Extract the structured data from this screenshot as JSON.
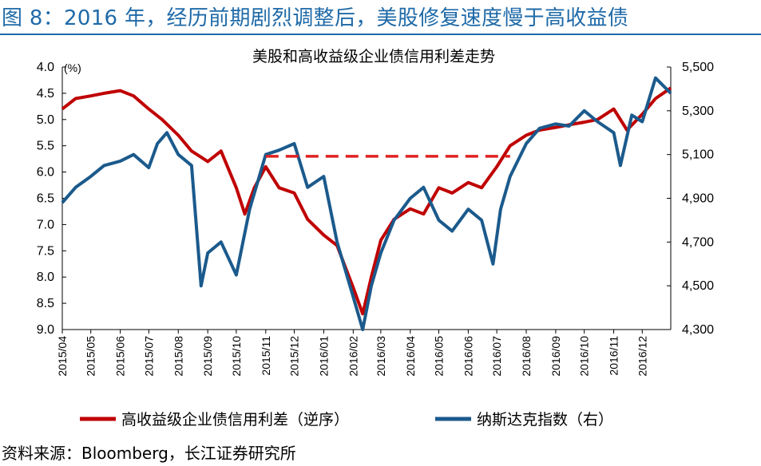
{
  "figure_title": "图 8：2016 年，经历前期剧烈调整后，美股修复速度慢于高收益债",
  "source_note": "资料来源：Bloomberg，长江证券研究所",
  "chart_data": {
    "type": "line",
    "title": "美股和高收益级企业债信用利差走势",
    "left_axis": {
      "unit": "(%)",
      "range": [
        9.0,
        4.0
      ],
      "inverted": true,
      "ticks": [
        "4.0",
        "4.5",
        "5.0",
        "5.5",
        "6.0",
        "6.5",
        "7.0",
        "7.5",
        "8.0",
        "8.5",
        "9.0"
      ]
    },
    "right_axis": {
      "range": [
        4300,
        5500
      ],
      "ticks": [
        "4,300",
        "4,500",
        "4,700",
        "4,900",
        "5,100",
        "5,300",
        "5,500"
      ]
    },
    "x_ticks": [
      "2015/04",
      "2015/05",
      "2015/06",
      "2015/07",
      "2015/08",
      "2015/09",
      "2015/10",
      "2015/11",
      "2015/12",
      "2016/01",
      "2016/02",
      "2016/03",
      "2016/04",
      "2016/05",
      "2016/06",
      "2016/07",
      "2016/08",
      "2016/09",
      "2016/10",
      "2016/11",
      "2016/12"
    ],
    "grid": false,
    "legend_position": "bottom",
    "colors": {
      "spread": "#c00000",
      "nasdaq": "#1b5a8c",
      "reference": "#e02020"
    },
    "series": [
      {
        "name": "高收益级企业债信用利差（逆序）",
        "axis": "left",
        "x": [
          "2015-04-01",
          "2015-04-15",
          "2015-05-01",
          "2015-05-15",
          "2015-06-01",
          "2015-06-15",
          "2015-07-01",
          "2015-07-15",
          "2015-08-01",
          "2015-08-15",
          "2015-09-01",
          "2015-09-15",
          "2015-10-01",
          "2015-10-10",
          "2015-10-20",
          "2015-11-01",
          "2015-11-15",
          "2015-12-01",
          "2015-12-15",
          "2016-01-01",
          "2016-01-15",
          "2016-02-01",
          "2016-02-11",
          "2016-02-20",
          "2016-03-01",
          "2016-03-15",
          "2016-04-01",
          "2016-04-15",
          "2016-05-01",
          "2016-05-15",
          "2016-06-01",
          "2016-06-15",
          "2016-07-01",
          "2016-07-15",
          "2016-08-01",
          "2016-08-15",
          "2016-09-01",
          "2016-09-15",
          "2016-10-01",
          "2016-10-15",
          "2016-11-01",
          "2016-11-15",
          "2016-12-01",
          "2016-12-15",
          "2016-12-31"
        ],
        "values": [
          4.8,
          4.6,
          4.55,
          4.5,
          4.45,
          4.55,
          4.8,
          5.0,
          5.3,
          5.6,
          5.8,
          5.6,
          6.3,
          6.8,
          6.3,
          5.9,
          6.3,
          6.4,
          6.9,
          7.2,
          7.4,
          8.2,
          8.7,
          8.0,
          7.3,
          6.9,
          6.7,
          6.8,
          6.3,
          6.4,
          6.2,
          6.3,
          5.9,
          5.5,
          5.3,
          5.2,
          5.15,
          5.1,
          5.05,
          5.0,
          4.8,
          5.2,
          4.9,
          4.6,
          4.4
        ]
      },
      {
        "name": "纳斯达克指数（右）",
        "axis": "right",
        "x": [
          "2015-04-01",
          "2015-04-15",
          "2015-05-01",
          "2015-05-15",
          "2015-06-01",
          "2015-06-15",
          "2015-07-01",
          "2015-07-10",
          "2015-07-20",
          "2015-08-01",
          "2015-08-15",
          "2015-08-25",
          "2015-09-01",
          "2015-09-15",
          "2015-10-01",
          "2015-10-15",
          "2015-11-01",
          "2015-11-15",
          "2015-12-01",
          "2015-12-15",
          "2016-01-01",
          "2016-01-15",
          "2016-02-01",
          "2016-02-11",
          "2016-02-20",
          "2016-03-01",
          "2016-03-15",
          "2016-04-01",
          "2016-04-15",
          "2016-05-01",
          "2016-05-15",
          "2016-06-01",
          "2016-06-15",
          "2016-06-27",
          "2016-07-05",
          "2016-07-15",
          "2016-08-01",
          "2016-08-15",
          "2016-09-01",
          "2016-09-15",
          "2016-10-01",
          "2016-10-15",
          "2016-11-01",
          "2016-11-08",
          "2016-11-20",
          "2016-12-01",
          "2016-12-15",
          "2016-12-31"
        ],
        "values": [
          4880,
          4950,
          5000,
          5050,
          5070,
          5100,
          5040,
          5150,
          5200,
          5100,
          5050,
          4500,
          4650,
          4700,
          4550,
          4850,
          5100,
          5120,
          5150,
          4950,
          5000,
          4700,
          4450,
          4300,
          4500,
          4650,
          4800,
          4900,
          4950,
          4800,
          4750,
          4850,
          4800,
          4600,
          4850,
          5000,
          5150,
          5220,
          5240,
          5230,
          5300,
          5250,
          5200,
          5050,
          5280,
          5250,
          5450,
          5380
        ]
      },
      {
        "name": "",
        "axis": "left",
        "style": "dashed",
        "x": [
          "2015-11-01",
          "2016-07-15"
        ],
        "values": [
          5.7,
          5.7
        ]
      }
    ]
  }
}
